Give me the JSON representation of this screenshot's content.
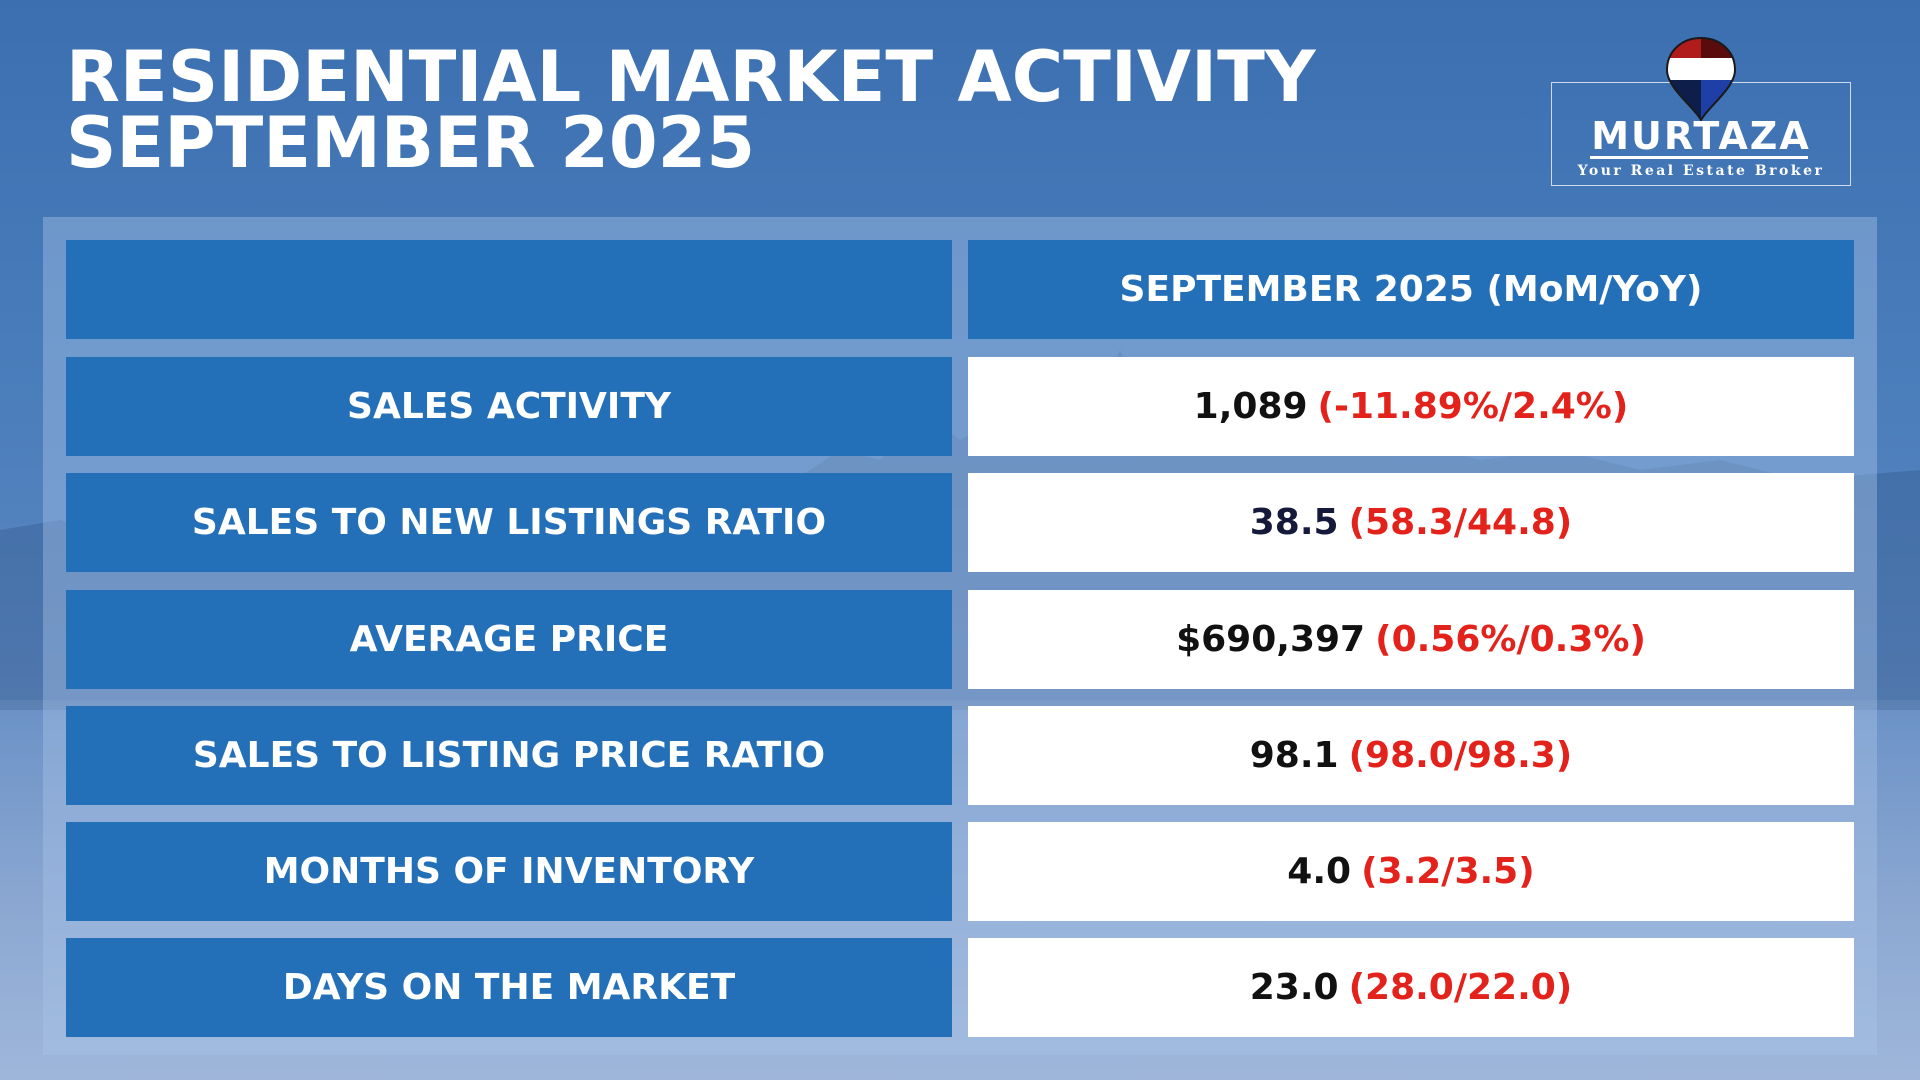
{
  "title": {
    "line1": "RESIDENTIAL MARKET ACTIVITY",
    "line2": "SEPTEMBER 2025"
  },
  "logo": {
    "name": "MURTAZA",
    "tagline": "Your Real Estate Broker",
    "pin_colors": [
      "#b01c1c",
      "#5a0c0c",
      "#ffffff",
      "#1f3fa8"
    ]
  },
  "table": {
    "header_label": "",
    "header_value": "SEPTEMBER 2025 (MoM/YoY)",
    "rows": [
      {
        "label": "SALES ACTIVITY",
        "value": "1,089",
        "change": "(-11.89%/2.4%)"
      },
      {
        "label": "SALES TO NEW LISTINGS RATIO",
        "value": "38.5",
        "change": "(58.3/44.8)"
      },
      {
        "label": "AVERAGE PRICE",
        "value": "$690,397",
        "change": "(0.56%/0.3%)"
      },
      {
        "label": "SALES TO LISTING PRICE RATIO",
        "value": "98.1",
        "change": "(98.0/98.3)"
      },
      {
        "label": "MONTHS OF INVENTORY",
        "value": "4.0",
        "change": "(3.2/3.5)"
      },
      {
        "label": "DAYS ON THE MARKET",
        "value": "23.0",
        "change": "(28.0/22.0)"
      }
    ]
  },
  "colors": {
    "label_bg": "#2470b8",
    "change_red": "#e3231b",
    "value_bg": "#ffffff"
  }
}
